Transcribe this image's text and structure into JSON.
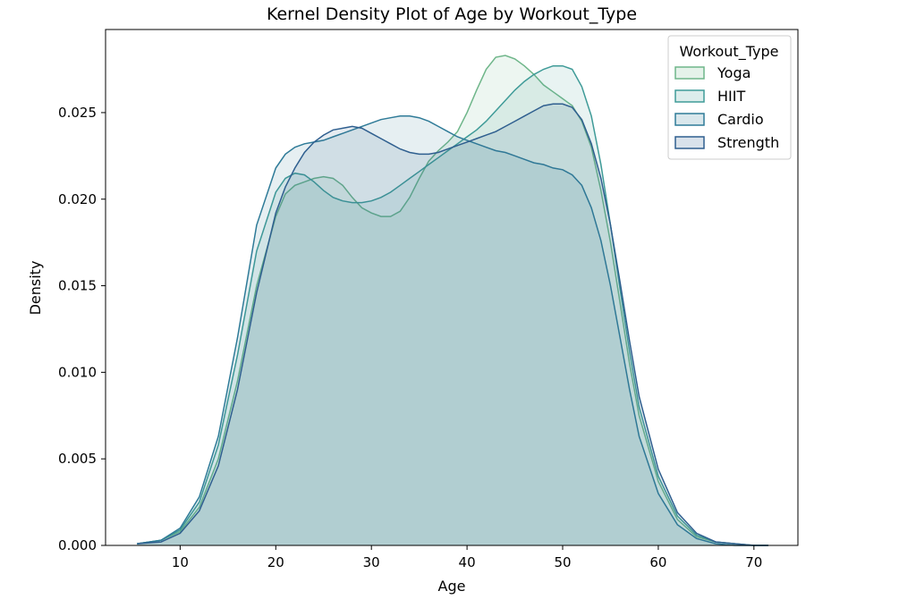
{
  "chart_data": {
    "type": "area",
    "title": "Kernel Density Plot of Age by Workout_Type",
    "xlabel": "Age",
    "ylabel": "Density",
    "xlim": [
      2.2,
      74.6
    ],
    "ylim": [
      0,
      0.0298
    ],
    "xticks": [
      10,
      20,
      30,
      40,
      50,
      60,
      70
    ],
    "yticks": [
      0.0,
      0.005,
      0.01,
      0.015,
      0.02,
      0.025
    ],
    "xtick_labels": [
      "10",
      "20",
      "30",
      "40",
      "50",
      "60",
      "70"
    ],
    "ytick_labels": [
      "0.000",
      "0.005",
      "0.010",
      "0.015",
      "0.020",
      "0.025"
    ],
    "grid": false,
    "legend": {
      "title": "Workout_Type",
      "position": "top-right"
    },
    "x": [
      5.5,
      8,
      10,
      12,
      14,
      16,
      18,
      20,
      21,
      22,
      23,
      24,
      25,
      26,
      27,
      28,
      29,
      30,
      31,
      32,
      33,
      34,
      35,
      36,
      37,
      38,
      39,
      40,
      41,
      42,
      43,
      44,
      45,
      46,
      47,
      48,
      49,
      50,
      51,
      52,
      53,
      54,
      55,
      56,
      57,
      58,
      60,
      62,
      64,
      66,
      68,
      70,
      71.5
    ],
    "series": [
      {
        "name": "Yoga",
        "color": "#6fb68a",
        "values": [
          0.0001,
          0.0003,
          0.0008,
          0.0022,
          0.005,
          0.0095,
          0.015,
          0.019,
          0.0203,
          0.0208,
          0.021,
          0.0212,
          0.0213,
          0.0212,
          0.0208,
          0.0201,
          0.0195,
          0.0192,
          0.019,
          0.019,
          0.0193,
          0.0201,
          0.0212,
          0.0222,
          0.0228,
          0.0233,
          0.0239,
          0.025,
          0.0263,
          0.0275,
          0.0282,
          0.0283,
          0.0281,
          0.0277,
          0.0272,
          0.0266,
          0.0262,
          0.0258,
          0.0254,
          0.0245,
          0.023,
          0.0205,
          0.0175,
          0.014,
          0.0105,
          0.0075,
          0.0037,
          0.0015,
          0.0005,
          0.0002,
          0.0001,
          0.0,
          0.0
        ]
      },
      {
        "name": "HIIT",
        "color": "#3f9b98",
        "values": [
          0.0001,
          0.0003,
          0.0009,
          0.0025,
          0.0058,
          0.011,
          0.017,
          0.0204,
          0.0212,
          0.0215,
          0.0214,
          0.021,
          0.0205,
          0.0201,
          0.0199,
          0.0198,
          0.0198,
          0.0199,
          0.0201,
          0.0204,
          0.0208,
          0.0212,
          0.0216,
          0.022,
          0.0224,
          0.0228,
          0.0232,
          0.0236,
          0.024,
          0.0245,
          0.0251,
          0.0257,
          0.0263,
          0.0268,
          0.0272,
          0.0275,
          0.0277,
          0.0277,
          0.0275,
          0.0265,
          0.0248,
          0.022,
          0.0185,
          0.0148,
          0.0112,
          0.008,
          0.004,
          0.0017,
          0.0006,
          0.0002,
          0.0001,
          0.0,
          0.0
        ]
      },
      {
        "name": "Cardio",
        "color": "#2f7b98",
        "values": [
          0.0001,
          0.0003,
          0.001,
          0.0028,
          0.0063,
          0.012,
          0.0185,
          0.0218,
          0.0226,
          0.023,
          0.0232,
          0.0233,
          0.0234,
          0.0236,
          0.0238,
          0.024,
          0.0242,
          0.0244,
          0.0246,
          0.0247,
          0.0248,
          0.0248,
          0.0247,
          0.0245,
          0.0242,
          0.0239,
          0.0236,
          0.0234,
          0.0232,
          0.023,
          0.0228,
          0.0227,
          0.0225,
          0.0223,
          0.0221,
          0.022,
          0.0218,
          0.0217,
          0.0214,
          0.0208,
          0.0195,
          0.0176,
          0.015,
          0.012,
          0.009,
          0.0063,
          0.003,
          0.0012,
          0.0004,
          0.0001,
          0.0,
          0.0,
          0.0
        ]
      },
      {
        "name": "Strength",
        "color": "#2f5f8f",
        "values": [
          0.0001,
          0.0002,
          0.0007,
          0.002,
          0.0046,
          0.009,
          0.0146,
          0.0192,
          0.0207,
          0.0218,
          0.0227,
          0.0233,
          0.0237,
          0.024,
          0.0241,
          0.0242,
          0.0241,
          0.0238,
          0.0235,
          0.0232,
          0.0229,
          0.0227,
          0.0226,
          0.0226,
          0.0227,
          0.0229,
          0.0231,
          0.0233,
          0.0235,
          0.0237,
          0.0239,
          0.0242,
          0.0245,
          0.0248,
          0.0251,
          0.0254,
          0.0255,
          0.0255,
          0.0253,
          0.0246,
          0.0232,
          0.0212,
          0.0185,
          0.0152,
          0.0118,
          0.0086,
          0.0044,
          0.0019,
          0.0007,
          0.0002,
          0.0001,
          0.0,
          0.0
        ]
      }
    ]
  }
}
